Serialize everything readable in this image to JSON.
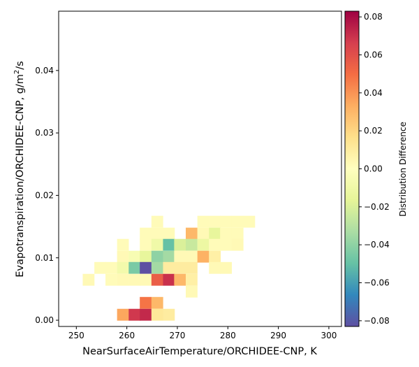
{
  "chart_data": {
    "type": "heatmap",
    "xlabel": "NearSurfaceAirTemperature/ORCHIDEE-CNP,  K",
    "ylabel_main": "Evapotranspiration/ORCHIDEE-CNP,  g/m",
    "ylabel_sup": "2",
    "ylabel_tail": "/s",
    "colorbar_label": "Distribution Difference",
    "xlim": [
      246.5,
      302.5
    ],
    "ylim": [
      -0.001,
      0.0495
    ],
    "xticks": [
      250,
      260,
      270,
      280,
      290,
      300
    ],
    "xtick_labels": [
      "250",
      "260",
      "270",
      "280",
      "290",
      "300"
    ],
    "yticks": [
      0.0,
      0.01,
      0.02,
      0.03,
      0.04
    ],
    "ytick_labels": [
      "0.00",
      "0.01",
      "0.02",
      "0.03",
      "0.04"
    ],
    "clim": [
      -0.083,
      0.083
    ],
    "cticks": [
      -0.08,
      -0.06,
      -0.04,
      -0.02,
      0.0,
      0.02,
      0.04,
      0.06,
      0.08
    ],
    "ctick_labels": [
      "−0.08",
      "−0.06",
      "−0.04",
      "−0.02",
      "0.00",
      "0.02",
      "0.04",
      "0.06",
      "0.08"
    ],
    "colormap": "Spectral_r",
    "colormap_stops": [
      "#5e4fa2",
      "#3288bd",
      "#66c2a5",
      "#abdda4",
      "#e6f598",
      "#ffffbf",
      "#fee08b",
      "#fdae61",
      "#f46d43",
      "#d53e4f",
      "#9e0142"
    ],
    "bin_width_x": 2.27,
    "bin_height_y": 0.00185,
    "cells": [
      {
        "x": 252.4,
        "y": 0.0065,
        "v": 0.003
      },
      {
        "x": 254.7,
        "y": 0.0084,
        "v": 0.002
      },
      {
        "x": 256.9,
        "y": 0.0084,
        "v": 0.002
      },
      {
        "x": 256.9,
        "y": 0.0065,
        "v": 0.002
      },
      {
        "x": 259.2,
        "y": 0.0121,
        "v": 0.002
      },
      {
        "x": 259.2,
        "y": 0.0102,
        "v": 0.003
      },
      {
        "x": 259.2,
        "y": 0.0084,
        "v": -0.008
      },
      {
        "x": 259.2,
        "y": 0.0065,
        "v": 0.003
      },
      {
        "x": 259.2,
        "y": 0.0009,
        "v": 0.035
      },
      {
        "x": 261.5,
        "y": 0.0102,
        "v": -0.005
      },
      {
        "x": 261.5,
        "y": 0.0084,
        "v": -0.045
      },
      {
        "x": 261.5,
        "y": 0.0065,
        "v": 0.003
      },
      {
        "x": 261.5,
        "y": 0.0009,
        "v": 0.068
      },
      {
        "x": 263.7,
        "y": 0.0139,
        "v": 0.002
      },
      {
        "x": 263.7,
        "y": 0.0121,
        "v": 0.002
      },
      {
        "x": 263.7,
        "y": 0.0102,
        "v": -0.015
      },
      {
        "x": 263.7,
        "y": 0.0084,
        "v": -0.083
      },
      {
        "x": 263.7,
        "y": 0.0065,
        "v": 0.003
      },
      {
        "x": 263.7,
        "y": 0.0028,
        "v": 0.048
      },
      {
        "x": 263.7,
        "y": 0.0009,
        "v": 0.072
      },
      {
        "x": 266.0,
        "y": 0.0158,
        "v": 0.002
      },
      {
        "x": 266.0,
        "y": 0.0139,
        "v": 0.002
      },
      {
        "x": 266.0,
        "y": 0.0121,
        "v": -0.01
      },
      {
        "x": 266.0,
        "y": 0.0102,
        "v": -0.04
      },
      {
        "x": 266.0,
        "y": 0.0084,
        "v": -0.035
      },
      {
        "x": 266.0,
        "y": 0.0065,
        "v": 0.055
      },
      {
        "x": 266.0,
        "y": 0.0028,
        "v": 0.03
      },
      {
        "x": 266.0,
        "y": 0.0009,
        "v": 0.012
      },
      {
        "x": 268.3,
        "y": 0.0139,
        "v": 0.002
      },
      {
        "x": 268.3,
        "y": 0.0121,
        "v": -0.05
      },
      {
        "x": 268.3,
        "y": 0.0102,
        "v": -0.035
      },
      {
        "x": 268.3,
        "y": 0.0084,
        "v": 0.01
      },
      {
        "x": 268.3,
        "y": 0.0065,
        "v": 0.07
      },
      {
        "x": 268.3,
        "y": 0.0009,
        "v": 0.01
      },
      {
        "x": 270.5,
        "y": 0.0121,
        "v": -0.02
      },
      {
        "x": 270.5,
        "y": 0.0102,
        "v": 0.003
      },
      {
        "x": 270.5,
        "y": 0.0084,
        "v": 0.01
      },
      {
        "x": 270.5,
        "y": 0.0065,
        "v": 0.03
      },
      {
        "x": 272.8,
        "y": 0.0139,
        "v": 0.03
      },
      {
        "x": 272.8,
        "y": 0.0121,
        "v": -0.025
      },
      {
        "x": 272.8,
        "y": 0.0102,
        "v": 0.003
      },
      {
        "x": 272.8,
        "y": 0.0084,
        "v": 0.01
      },
      {
        "x": 272.8,
        "y": 0.0065,
        "v": 0.008
      },
      {
        "x": 272.8,
        "y": 0.0046,
        "v": 0.003
      },
      {
        "x": 275.1,
        "y": 0.0158,
        "v": 0.002
      },
      {
        "x": 275.1,
        "y": 0.0139,
        "v": 0.003
      },
      {
        "x": 275.1,
        "y": 0.0121,
        "v": -0.012
      },
      {
        "x": 275.1,
        "y": 0.0102,
        "v": 0.032
      },
      {
        "x": 277.4,
        "y": 0.0158,
        "v": 0.002
      },
      {
        "x": 277.4,
        "y": 0.0139,
        "v": -0.015
      },
      {
        "x": 277.4,
        "y": 0.0121,
        "v": 0.002
      },
      {
        "x": 277.4,
        "y": 0.0102,
        "v": 0.008
      },
      {
        "x": 277.4,
        "y": 0.0084,
        "v": 0.003
      },
      {
        "x": 279.6,
        "y": 0.0158,
        "v": 0.002
      },
      {
        "x": 279.6,
        "y": 0.0139,
        "v": 0.002
      },
      {
        "x": 279.6,
        "y": 0.0121,
        "v": 0.002
      },
      {
        "x": 279.6,
        "y": 0.0084,
        "v": 0.003
      },
      {
        "x": 281.9,
        "y": 0.0158,
        "v": 0.002
      },
      {
        "x": 281.9,
        "y": 0.0139,
        "v": 0.002
      },
      {
        "x": 281.9,
        "y": 0.0121,
        "v": 0.003
      },
      {
        "x": 284.2,
        "y": 0.0158,
        "v": 0.002
      }
    ]
  }
}
